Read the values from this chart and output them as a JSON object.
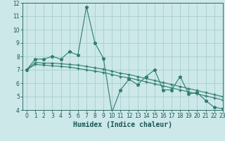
{
  "xlabel": "Humidex (Indice chaleur)",
  "x": [
    0,
    1,
    2,
    3,
    4,
    5,
    6,
    7,
    8,
    9,
    10,
    11,
    12,
    13,
    14,
    15,
    16,
    17,
    18,
    19,
    20,
    21,
    22,
    23
  ],
  "line1": [
    7.0,
    7.8,
    7.8,
    8.0,
    7.8,
    8.35,
    8.1,
    11.7,
    9.0,
    7.85,
    3.85,
    5.5,
    6.3,
    5.9,
    6.5,
    7.0,
    5.5,
    5.5,
    6.5,
    5.2,
    5.3,
    4.7,
    4.2,
    4.1
  ],
  "line2": [
    7.0,
    7.55,
    7.5,
    7.5,
    7.45,
    7.4,
    7.35,
    7.25,
    7.15,
    7.05,
    6.9,
    6.75,
    6.65,
    6.5,
    6.35,
    6.2,
    6.05,
    5.9,
    5.75,
    5.6,
    5.45,
    5.3,
    5.15,
    5.0
  ],
  "line3": [
    7.0,
    7.4,
    7.35,
    7.3,
    7.25,
    7.2,
    7.1,
    7.0,
    6.9,
    6.8,
    6.65,
    6.5,
    6.4,
    6.25,
    6.1,
    5.95,
    5.8,
    5.65,
    5.5,
    5.35,
    5.2,
    5.05,
    4.9,
    4.75
  ],
  "line_color": "#2e7d6e",
  "bg_color": "#cce8e8",
  "grid_color": "#aacece",
  "ylim": [
    4,
    12
  ],
  "xlim": [
    -0.5,
    23
  ],
  "yticks": [
    4,
    5,
    6,
    7,
    8,
    9,
    10,
    11,
    12
  ],
  "xticks": [
    0,
    1,
    2,
    3,
    4,
    5,
    6,
    7,
    8,
    9,
    10,
    11,
    12,
    13,
    14,
    15,
    16,
    17,
    18,
    19,
    20,
    21,
    22,
    23
  ],
  "tick_fontsize": 5.5,
  "xlabel_fontsize": 7.0
}
